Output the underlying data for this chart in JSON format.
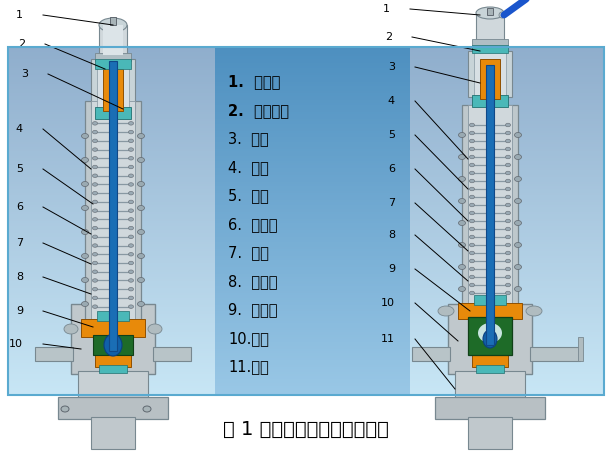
{
  "title": "图 1 助动式安全阀结构示意图",
  "title_fontsize": 14,
  "background_color": "#ffffff",
  "legend_items": [
    "1.  保护罩",
    "2.  调整螺杆",
    "3.  阀杆",
    "4.  弹簧",
    "5.  阀盖",
    "6.  导向套",
    "7.  阀瓣",
    "8.  反冲盘",
    "9.  调节环",
    "10.阀体",
    "11.阀座"
  ],
  "legend_fontsize": 10.5,
  "legend_bold": [
    true,
    true,
    false,
    false,
    false,
    false,
    false,
    false,
    false,
    false,
    false
  ],
  "valve_stem_color": "#1a6eb5",
  "valve_orange_color": "#e88a0a",
  "valve_green_color": "#1e6b28",
  "valve_teal_color": "#4ab8b8",
  "lever_color": "#1a55cc",
  "body_color": "#c8cfd3",
  "spring_color": "#b0bec5",
  "bolt_color": "#9aaab2"
}
